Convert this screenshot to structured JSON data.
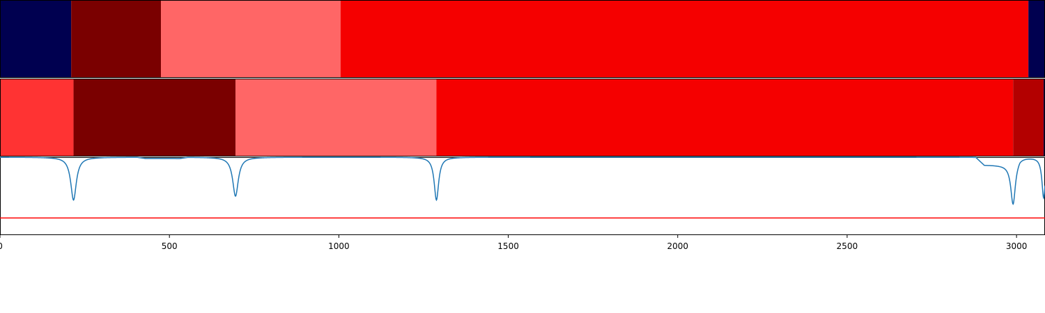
{
  "chart_data": {
    "type": "segmentation",
    "xlim": [
      0,
      3084
    ],
    "x_ticks": [
      0,
      500,
      1000,
      1500,
      2000,
      2500,
      3000
    ],
    "x_tick_labels": [
      "0",
      "500",
      "1000",
      "1500",
      "2000",
      "2500",
      "3000"
    ],
    "segment_rows": [
      {
        "segments": [
          {
            "start": 0,
            "end": 210,
            "color": "#000050"
          },
          {
            "start": 210,
            "end": 475,
            "color": "#7a0000"
          },
          {
            "start": 475,
            "end": 1005,
            "color": "#ff6666"
          },
          {
            "start": 1005,
            "end": 3035,
            "color": "#f50000"
          },
          {
            "start": 3035,
            "end": 3084,
            "color": "#000050"
          }
        ]
      },
      {
        "segments": [
          {
            "start": 0,
            "end": 217,
            "color": "#ff3333"
          },
          {
            "start": 217,
            "end": 695,
            "color": "#7a0000"
          },
          {
            "start": 695,
            "end": 1288,
            "color": "#ff6666"
          },
          {
            "start": 1288,
            "end": 2990,
            "color": "#f50000"
          },
          {
            "start": 2990,
            "end": 3080,
            "color": "#b30000"
          },
          {
            "start": 3080,
            "end": 3084,
            "color": "#000050"
          }
        ]
      }
    ],
    "signal": {
      "color": "#1f77b4",
      "ylim": [
        0,
        1
      ],
      "baseline": 1.0,
      "dips": [
        {
          "center": 217,
          "depth": 0.55,
          "width": 10
        },
        {
          "center": 695,
          "depth": 0.5,
          "width": 10
        },
        {
          "center": 1288,
          "depth": 0.55,
          "width": 8
        },
        {
          "center": 2990,
          "depth": 0.52,
          "width": 8
        },
        {
          "center": 3080,
          "depth": 0.52,
          "width": 6
        }
      ],
      "plateaus": [
        {
          "start": 430,
          "end": 530,
          "value": 0.985
        },
        {
          "start": 2905,
          "end": 2985,
          "value": 0.9
        }
      ]
    },
    "threshold": {
      "value": 0.22,
      "color": "#ff0000"
    }
  }
}
